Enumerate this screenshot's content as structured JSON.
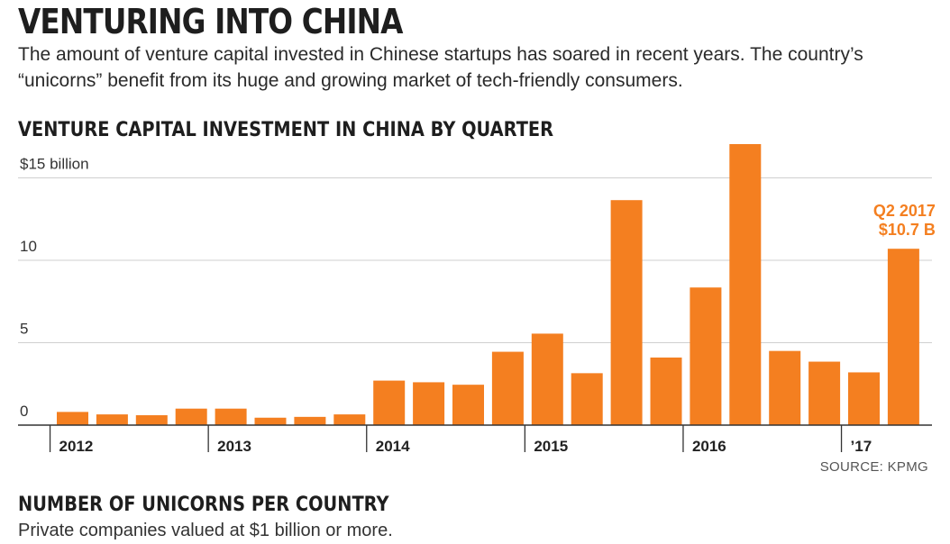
{
  "headline": "VENTURING INTO CHINA",
  "dek": "The amount of venture capital invested in Chinese startups has soared in recent years. The country’s “unicorns” benefit from its huge and growing market of tech-friendly consumers.",
  "source": "SOURCE: KPMG",
  "unicorns": {
    "title": "NUMBER OF UNICORNS PER COUNTRY",
    "subtitle": "Private companies valued at $1 billion or more."
  },
  "chart_data": {
    "type": "bar",
    "title": "VENTURE CAPITAL INVESTMENT IN CHINA BY QUARTER",
    "ylabel": "",
    "xlabel": "",
    "ylim": [
      0,
      15
    ],
    "y_ticks": [
      {
        "value": 0,
        "label": "0"
      },
      {
        "value": 5,
        "label": "5"
      },
      {
        "value": 10,
        "label": "10"
      },
      {
        "value": 15,
        "label": "$15 billion"
      }
    ],
    "x_ticks": [
      "2012",
      "2013",
      "2014",
      "2015",
      "2016",
      "’17"
    ],
    "grid": true,
    "bar_color": "#f47f20",
    "values": [
      0.8,
      0.65,
      0.6,
      1.0,
      1.0,
      0.45,
      0.5,
      0.65,
      2.7,
      2.6,
      2.45,
      4.45,
      5.55,
      3.15,
      13.65,
      4.1,
      8.35,
      17.3,
      4.5,
      3.85,
      3.2,
      10.7
    ],
    "annotation": {
      "line1": "Q2 2017",
      "line2": "$10.7 B",
      "bar_index": 21
    }
  }
}
